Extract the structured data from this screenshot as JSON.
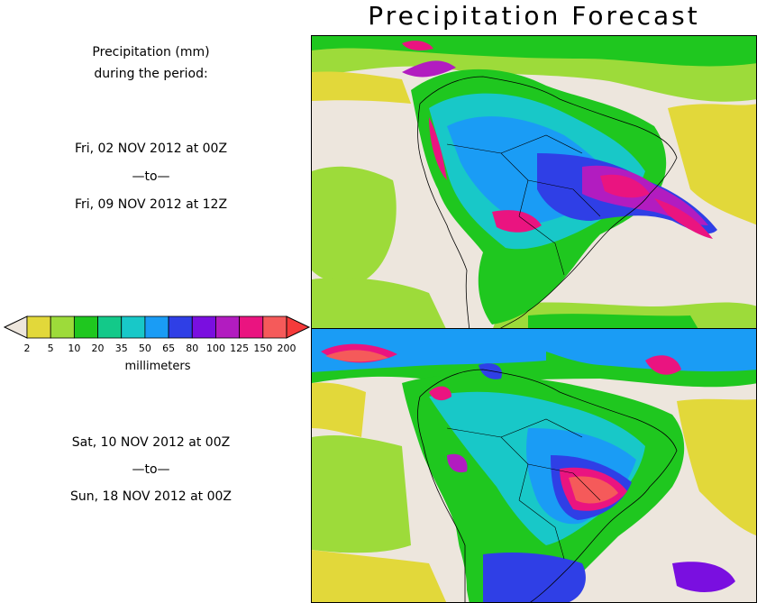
{
  "title": "Precipitation Forecast",
  "legend_heading": {
    "line1": "Precipitation (mm)",
    "line2": "during the period:"
  },
  "period1": {
    "start": "Fri, 02 NOV 2012 at 00Z",
    "separator": "—to—",
    "end": "Fri, 09 NOV 2012 at 12Z"
  },
  "period2": {
    "start": "Sat, 10 NOV 2012 at 00Z",
    "separator": "—to—",
    "end": "Sun, 18 NOV 2012 at 00Z"
  },
  "colorbar": {
    "unit": "millimeters",
    "ticks": [
      "2",
      "5",
      "10",
      "20",
      "35",
      "50",
      "65",
      "80",
      "100",
      "125",
      "150",
      "200"
    ],
    "colors": [
      "#ede6dd",
      "#e2d83a",
      "#9ddb3a",
      "#1fc71f",
      "#13c989",
      "#18c8c8",
      "#1a9cf5",
      "#2f3fe6",
      "#7a0fe0",
      "#b21cc0",
      "#ea1480",
      "#f55a5a",
      "#f53a3a"
    ]
  }
}
